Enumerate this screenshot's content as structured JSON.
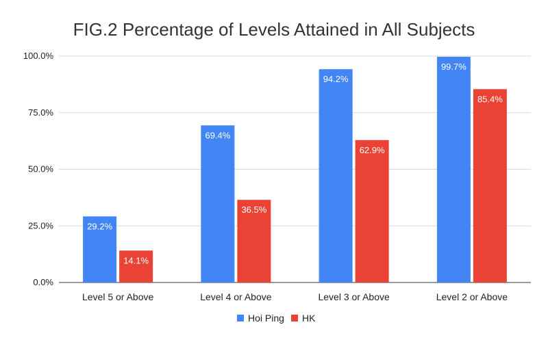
{
  "chart_data": {
    "type": "bar",
    "title": "FIG.2 Percentage of Levels Attained in All Subjects",
    "categories": [
      "Level 5 or Above",
      "Level 4 or Above",
      "Level 3 or Above",
      "Level 2 or Above"
    ],
    "series": [
      {
        "name": "Hoi Ping",
        "color": "#4285f4",
        "values": [
          29.2,
          69.4,
          94.2,
          99.7
        ],
        "labels": [
          "29.2%",
          "69.4%",
          "94.2%",
          "99.7%"
        ]
      },
      {
        "name": "HK",
        "color": "#ea4335",
        "values": [
          14.1,
          36.5,
          62.9,
          85.4
        ],
        "labels": [
          "14.1%",
          "36.5%",
          "62.9%",
          "85.4%"
        ]
      }
    ],
    "ylim": [
      0,
      100
    ],
    "yticks": [
      0,
      25,
      50,
      75,
      100
    ],
    "ytick_labels": [
      "0.0%",
      "25.0%",
      "50.0%",
      "75.0%",
      "100.0%"
    ],
    "grid": true,
    "legend_position": "bottom"
  }
}
